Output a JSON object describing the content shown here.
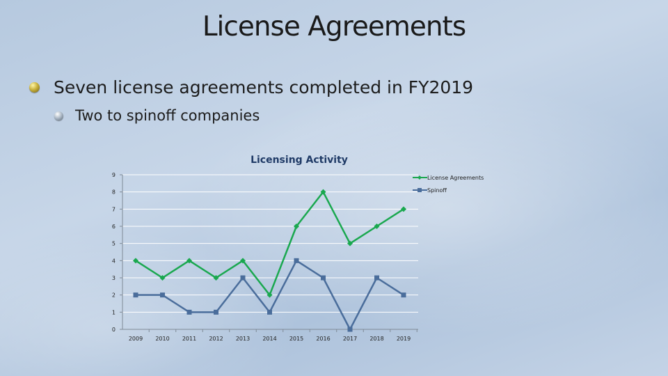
{
  "slide": {
    "title": "License Agreements",
    "bullets": [
      {
        "text": "Seven license agreements completed in FY2019",
        "level": 1
      },
      {
        "text": "Two to spinoff companies",
        "level": 2
      }
    ]
  },
  "chart_data": {
    "type": "line",
    "title": "Licensing Activity",
    "xlabel": "",
    "ylabel": "",
    "categories": [
      "2009",
      "2010",
      "2011",
      "2012",
      "2013",
      "2014",
      "2015",
      "2016",
      "2017",
      "2018",
      "2019"
    ],
    "ylim": [
      0,
      9
    ],
    "yticks": [
      0,
      1,
      2,
      3,
      4,
      5,
      6,
      7,
      8,
      9
    ],
    "grid": "horizontal",
    "legend_position": "top-right",
    "series": [
      {
        "name": "License Agreements",
        "color": "#1aa84f",
        "marker": "diamond",
        "values": [
          4,
          3,
          4,
          3,
          4,
          2,
          6,
          8,
          5,
          6,
          7
        ]
      },
      {
        "name": "Spinoff",
        "color": "#4a6d9b",
        "marker": "square",
        "values": [
          2,
          2,
          1,
          1,
          3,
          1,
          4,
          3,
          0,
          3,
          2
        ]
      }
    ]
  }
}
